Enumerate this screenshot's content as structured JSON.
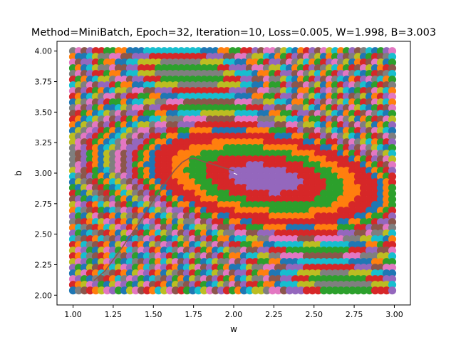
{
  "chart_data": {
    "type": "scatter",
    "title": "Method=MiniBatch, Epoch=32, Iteration=10, Loss=0.005, W=1.998, B=3.003",
    "xlabel": "w",
    "ylabel": "b",
    "xlim": [
      0.9,
      3.1
    ],
    "ylim": [
      1.92,
      4.08
    ],
    "xticks": [
      1.0,
      1.25,
      1.5,
      1.75,
      2.0,
      2.25,
      2.5,
      2.75,
      3.0
    ],
    "xtick_labels": [
      "1.00",
      "1.25",
      "1.50",
      "1.75",
      "2.00",
      "2.25",
      "2.50",
      "2.75",
      "3.00"
    ],
    "yticks": [
      2.0,
      2.25,
      2.5,
      2.75,
      3.0,
      3.25,
      3.5,
      3.75,
      4.0
    ],
    "ytick_labels": [
      "2.00",
      "2.25",
      "2.50",
      "2.75",
      "3.00",
      "3.25",
      "3.50",
      "3.75",
      "4.00"
    ],
    "loss_surface": {
      "w_range": [
        1.0,
        3.0
      ],
      "b_range": [
        2.0,
        4.0
      ],
      "center": [
        2.2,
        2.95
      ],
      "levels": [
        {
          "level": 1,
          "color": "#9467bd"
        },
        {
          "level": 2,
          "color": "#d62728"
        },
        {
          "level": 3,
          "color": "#2ca02c"
        },
        {
          "level": 4,
          "color": "#ff7f0e"
        },
        {
          "level": 5,
          "color": "#d62728"
        }
      ],
      "outer_palette": [
        "#1f77b4",
        "#ff7f0e",
        "#2ca02c",
        "#d62728",
        "#9467bd",
        "#8c564b",
        "#e377c2",
        "#7f7f7f",
        "#bcbd22",
        "#17becf"
      ]
    },
    "series": [
      {
        "name": "descent path",
        "color": "#8c564b",
        "w": [
          1.13,
          1.2,
          1.3,
          1.4,
          1.5,
          1.58,
          1.63,
          1.68,
          1.72,
          1.76,
          1.8,
          1.85,
          1.9,
          1.95,
          2.0
        ],
        "b": [
          2.12,
          2.2,
          2.38,
          2.57,
          2.78,
          2.93,
          3.02,
          3.09,
          3.12,
          3.12,
          3.1,
          3.08,
          3.06,
          3.04,
          3.02
        ]
      }
    ],
    "final_point": {
      "w": 2.0,
      "b": 3.0,
      "color": "#ffffff"
    }
  }
}
